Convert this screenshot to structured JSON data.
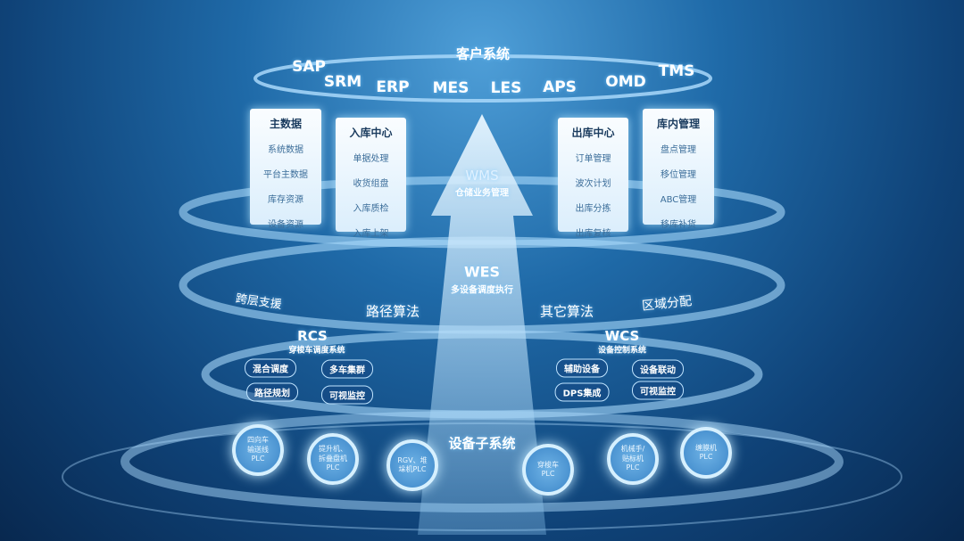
{
  "client": {
    "title": "客户系统",
    "systems": [
      "SAP",
      "SRM",
      "ERP",
      "MES",
      "LES",
      "APS",
      "OMD",
      "TMS"
    ]
  },
  "wms": {
    "title": "WMS",
    "subtitle": "仓储业务管理"
  },
  "cards": [
    {
      "title": "主数据",
      "items": [
        "系统数据",
        "平台主数据",
        "库存资源",
        "设备资源"
      ]
    },
    {
      "title": "入库中心",
      "items": [
        "单据处理",
        "收货组盘",
        "入库质检",
        "入库上架"
      ]
    },
    {
      "title": "出库中心",
      "items": [
        "订单管理",
        "波次计划",
        "出库分拣",
        "出库复核"
      ]
    },
    {
      "title": "库内管理",
      "items": [
        "盘点管理",
        "移位管理",
        "ABC管理",
        "移库补货"
      ]
    }
  ],
  "wes": {
    "title": "WES",
    "subtitle": "多设备调度执行",
    "ring_labels": [
      "跨层支援",
      "路径算法",
      "其它算法",
      "区域分配"
    ]
  },
  "rcs": {
    "title": "RCS",
    "subtitle": "穿梭车调度系统",
    "items": [
      "混合调度",
      "多车集群",
      "路径规划",
      "可视监控"
    ]
  },
  "wcs": {
    "title": "WCS",
    "subtitle": "设备控制系统",
    "items": [
      "辅助设备",
      "设备联动",
      "DPS集成",
      "可视监控"
    ]
  },
  "devices": {
    "title": "设备子系统",
    "items": [
      [
        "四向车",
        "输送线",
        "PLC"
      ],
      [
        "提升机、",
        "拆叠盘机",
        "PLC"
      ],
      [
        "RGV、堆",
        "垛机PLC"
      ],
      [
        "穿梭车",
        "PLC"
      ],
      [
        "机械手/",
        "贴标机",
        "PLC"
      ],
      [
        "缠膜机",
        "PLC"
      ]
    ]
  }
}
